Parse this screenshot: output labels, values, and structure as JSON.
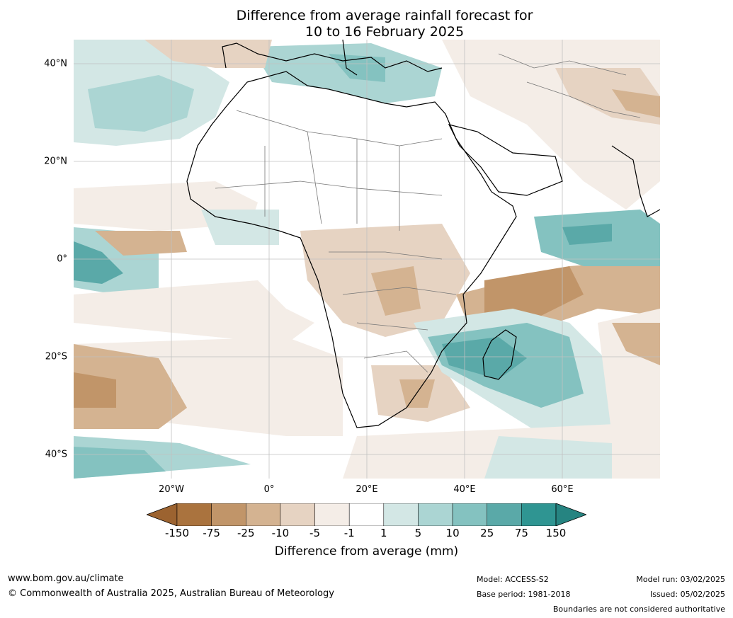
{
  "title_line1": "Difference from average rainfall forecast for",
  "title_line2": "10 to 16 February 2025",
  "axes": {
    "lat_labels": [
      "40°N",
      "20°N",
      "0°",
      "20°S",
      "40°S"
    ],
    "lon_labels": [
      "20°W",
      "0°",
      "20°E",
      "40°E",
      "60°E"
    ]
  },
  "legend": {
    "ticks": [
      "-150",
      "-75",
      "-25",
      "-10",
      "-5",
      "-1",
      "1",
      "5",
      "10",
      "25",
      "75",
      "150"
    ],
    "colors": [
      "#9c6330",
      "#aa733e",
      "#c19569",
      "#d4b391",
      "#e6d3c2",
      "#f4ede7",
      "#ffffff",
      "#d3e7e5",
      "#abd5d3",
      "#84c2c0",
      "#5aa9a8",
      "#2f9592",
      "#268481"
    ],
    "label": "Difference from average (mm)"
  },
  "footer": {
    "website": "www.bom.gov.au/climate",
    "copyright": "© Commonwealth of Australia 2025, Australian Bureau of Meteorology",
    "model": "Model: ACCESS-S2",
    "base_period": "Base period: 1981-2018",
    "model_run": "Model run: 03/02/2025",
    "issued": "Issued: 05/02/2025",
    "disclaimer": "Boundaries are not considered authoritative"
  }
}
